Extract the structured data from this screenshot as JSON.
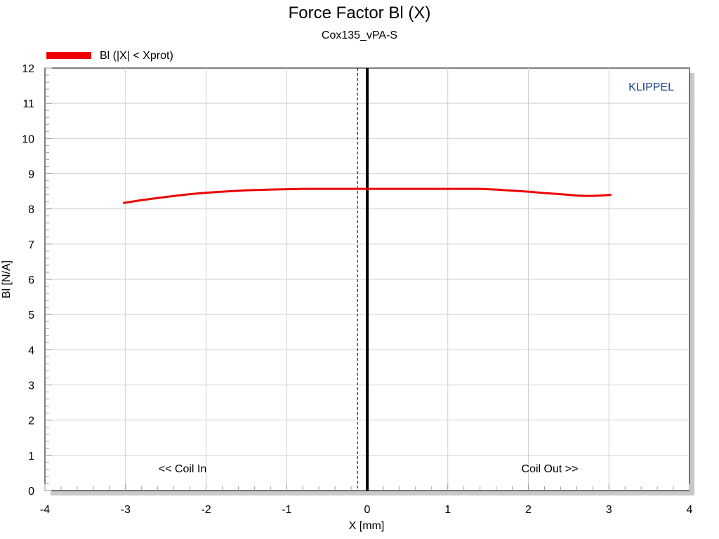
{
  "chart_data": {
    "type": "line",
    "title": "Force Factor Bl (X)",
    "subtitle": "Cox135_vPA-S",
    "xlabel": "X [mm]",
    "ylabel": "Bl [N/A]",
    "xlim": [
      -4,
      4
    ],
    "ylim": [
      0,
      12
    ],
    "xticks": [
      "-4",
      "-3",
      "-2",
      "-1",
      "0",
      "1",
      "2",
      "3",
      "4"
    ],
    "yticks": [
      "0",
      "1",
      "2",
      "3",
      "4",
      "5",
      "6",
      "7",
      "8",
      "9",
      "10",
      "11",
      "12"
    ],
    "grid": true,
    "legend": {
      "position": "top-left",
      "entries": [
        "Bl (|X| < Xprot)"
      ]
    },
    "brand": "KLIPPEL",
    "annotations": {
      "left": "<< Coil In",
      "right": "Coil Out >>"
    },
    "rest_position_line_x": 0,
    "offset_line_x": -0.12,
    "series": [
      {
        "name": "Bl (|X| < Xprot)",
        "color": "#ee0000",
        "x": [
          -3.02,
          -2.8,
          -2.5,
          -2.2,
          -2.0,
          -1.8,
          -1.5,
          -1.2,
          -1.0,
          -0.8,
          -0.5,
          -0.2,
          0.0,
          0.2,
          0.5,
          0.8,
          1.0,
          1.2,
          1.4,
          1.6,
          1.8,
          2.0,
          2.2,
          2.4,
          2.6,
          2.7,
          2.8,
          2.9,
          3.02
        ],
        "y": [
          8.17,
          8.25,
          8.34,
          8.42,
          8.46,
          8.49,
          8.53,
          8.55,
          8.56,
          8.57,
          8.57,
          8.57,
          8.57,
          8.57,
          8.57,
          8.57,
          8.57,
          8.57,
          8.57,
          8.55,
          8.52,
          8.49,
          8.45,
          8.42,
          8.38,
          8.37,
          8.37,
          8.38,
          8.4
        ]
      }
    ]
  }
}
